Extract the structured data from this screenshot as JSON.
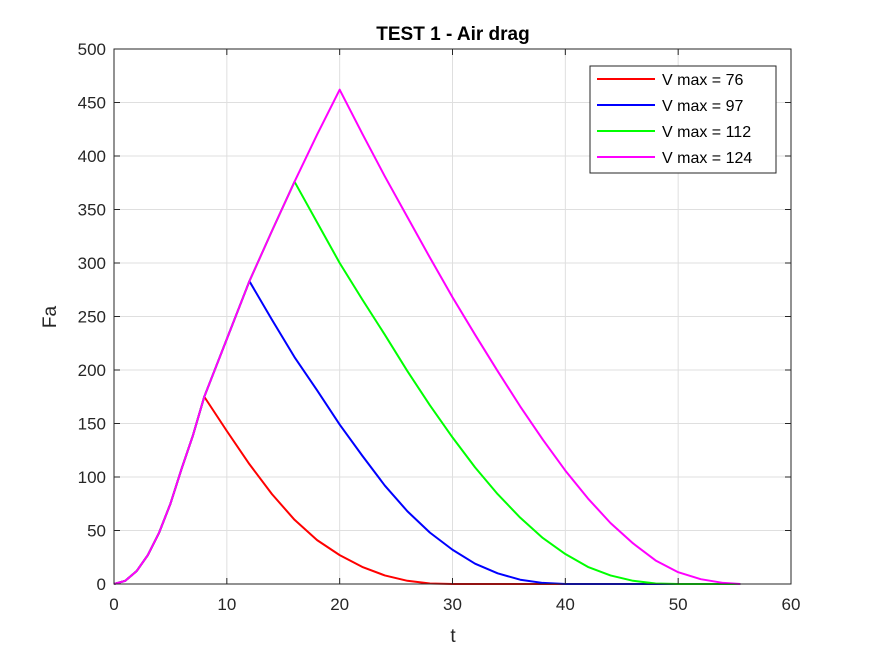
{
  "chart_data": {
    "type": "line",
    "title": "TEST 1 - Air drag",
    "xlabel": "t",
    "ylabel": "Fa",
    "xlim": [
      0,
      60
    ],
    "ylim": [
      0,
      500
    ],
    "xticks": [
      0,
      10,
      20,
      30,
      40,
      50,
      60
    ],
    "yticks": [
      0,
      50,
      100,
      150,
      200,
      250,
      300,
      350,
      400,
      450,
      500
    ],
    "grid": true,
    "legend_position": "top-right",
    "series": [
      {
        "name": "V max = 76",
        "color": "#ff0000",
        "points": [
          [
            0,
            0
          ],
          [
            1,
            3
          ],
          [
            2,
            12
          ],
          [
            3,
            27
          ],
          [
            4,
            48
          ],
          [
            5,
            75
          ],
          [
            6,
            108
          ],
          [
            7,
            139
          ],
          [
            8,
            175
          ],
          [
            10,
            143
          ],
          [
            12,
            112
          ],
          [
            14,
            84
          ],
          [
            16,
            60
          ],
          [
            18,
            41
          ],
          [
            20,
            27
          ],
          [
            22,
            16
          ],
          [
            24,
            8
          ],
          [
            26,
            3
          ],
          [
            28,
            0.5
          ],
          [
            30,
            0
          ],
          [
            40,
            0
          ],
          [
            50,
            0
          ],
          [
            55.5,
            0
          ]
        ]
      },
      {
        "name": "V max = 97",
        "color": "#0000ff",
        "points": [
          [
            0,
            0
          ],
          [
            1,
            3
          ],
          [
            2,
            12
          ],
          [
            3,
            27
          ],
          [
            4,
            48
          ],
          [
            5,
            75
          ],
          [
            6,
            108
          ],
          [
            7,
            139
          ],
          [
            8,
            175
          ],
          [
            10,
            229
          ],
          [
            12,
            283
          ],
          [
            14,
            247
          ],
          [
            16,
            212
          ],
          [
            18,
            181
          ],
          [
            20,
            149
          ],
          [
            22,
            120
          ],
          [
            24,
            92
          ],
          [
            26,
            68
          ],
          [
            28,
            48
          ],
          [
            30,
            32
          ],
          [
            32,
            19
          ],
          [
            34,
            10
          ],
          [
            36,
            4
          ],
          [
            38,
            1
          ],
          [
            40,
            0
          ],
          [
            50,
            0
          ],
          [
            55.5,
            0
          ]
        ]
      },
      {
        "name": "V max = 112",
        "color": "#00ff00",
        "points": [
          [
            0,
            0
          ],
          [
            1,
            3
          ],
          [
            2,
            12
          ],
          [
            3,
            27
          ],
          [
            4,
            48
          ],
          [
            5,
            75
          ],
          [
            6,
            108
          ],
          [
            7,
            139
          ],
          [
            8,
            175
          ],
          [
            10,
            229
          ],
          [
            12,
            283
          ],
          [
            14,
            330
          ],
          [
            16,
            376
          ],
          [
            18,
            338
          ],
          [
            20,
            300
          ],
          [
            22,
            266
          ],
          [
            24,
            233
          ],
          [
            26,
            199
          ],
          [
            28,
            167
          ],
          [
            30,
            137
          ],
          [
            32,
            109
          ],
          [
            34,
            84
          ],
          [
            36,
            62
          ],
          [
            38,
            43
          ],
          [
            40,
            28
          ],
          [
            42,
            16
          ],
          [
            44,
            8
          ],
          [
            46,
            3
          ],
          [
            48,
            0.5
          ],
          [
            50,
            0
          ],
          [
            55.5,
            0
          ]
        ]
      },
      {
        "name": "V max = 124",
        "color": "#ff00ff",
        "points": [
          [
            0,
            0
          ],
          [
            1,
            3
          ],
          [
            2,
            12
          ],
          [
            3,
            27
          ],
          [
            4,
            48
          ],
          [
            5,
            75
          ],
          [
            6,
            108
          ],
          [
            7,
            139
          ],
          [
            8,
            175
          ],
          [
            10,
            229
          ],
          [
            12,
            283
          ],
          [
            14,
            330
          ],
          [
            16,
            376
          ],
          [
            18,
            420
          ],
          [
            20,
            462
          ],
          [
            22,
            421
          ],
          [
            24,
            381
          ],
          [
            26,
            343
          ],
          [
            28,
            305
          ],
          [
            30,
            268
          ],
          [
            32,
            233
          ],
          [
            34,
            199
          ],
          [
            36,
            166
          ],
          [
            38,
            135
          ],
          [
            40,
            106
          ],
          [
            42,
            80
          ],
          [
            44,
            57
          ],
          [
            46,
            38
          ],
          [
            48,
            22
          ],
          [
            50,
            11
          ],
          [
            52,
            4.5
          ],
          [
            54,
            1
          ],
          [
            55.5,
            0
          ]
        ]
      }
    ]
  }
}
